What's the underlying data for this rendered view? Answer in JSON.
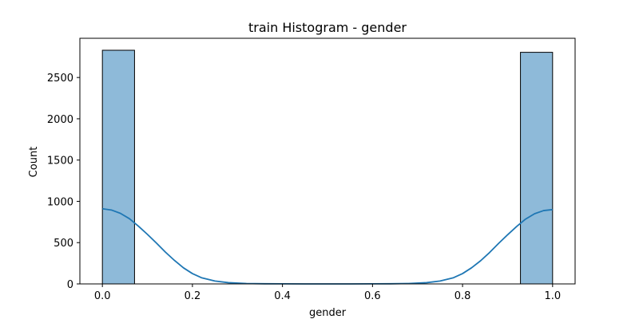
{
  "chart_data": {
    "type": "bar",
    "title": "train Histogram - gender",
    "xlabel": "gender",
    "ylabel": "Count",
    "xlim": [
      -0.05,
      1.05
    ],
    "ylim": [
      0,
      2975
    ],
    "xticks": [
      "0.0",
      "0.2",
      "0.4",
      "0.6",
      "0.8",
      "1.0"
    ],
    "yticks": [
      "0",
      "500",
      "1000",
      "1500",
      "2000",
      "2500"
    ],
    "grid": false,
    "legend": "none",
    "bins": [
      {
        "x0": 0.0,
        "x1": 0.0714,
        "count": 2830
      },
      {
        "x0": 0.9286,
        "x1": 1.0,
        "count": 2805
      }
    ],
    "kde": {
      "x": [
        0.0,
        0.02,
        0.04,
        0.06,
        0.08,
        0.1,
        0.12,
        0.14,
        0.16,
        0.18,
        0.2,
        0.22,
        0.25,
        0.28,
        0.32,
        0.36,
        0.4,
        0.45,
        0.5,
        0.55,
        0.6,
        0.64,
        0.68,
        0.72,
        0.75,
        0.78,
        0.8,
        0.82,
        0.84,
        0.86,
        0.88,
        0.9,
        0.92,
        0.94,
        0.96,
        0.98,
        1.0
      ],
      "y": [
        910,
        895,
        855,
        790,
        700,
        600,
        495,
        385,
        285,
        195,
        125,
        75,
        35,
        15,
        5,
        2,
        1,
        0,
        0,
        0,
        1,
        2,
        5,
        15,
        35,
        75,
        125,
        195,
        280,
        380,
        490,
        595,
        695,
        785,
        850,
        888,
        900
      ]
    },
    "colors": {
      "bar_fill": "#8ebad9",
      "bar_edge": "#000000",
      "kde_line": "#1f77b4",
      "axis": "#000000"
    }
  }
}
